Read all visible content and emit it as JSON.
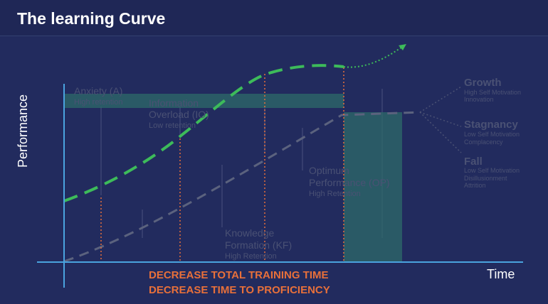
{
  "header": {
    "title": "The learning Curve"
  },
  "axes": {
    "y_label": "Performance",
    "x_label": "Time"
  },
  "stages": [
    {
      "lines": [
        "Anxiety (A)"
      ],
      "note": "High retention"
    },
    {
      "lines": [
        "Information",
        "Overload (IO)"
      ],
      "note": "Low retention"
    },
    {
      "lines": [
        "Knowledge",
        "Formation (KF)"
      ],
      "note": "High Retention"
    },
    {
      "lines": [
        "Optimum",
        "Performance (OP)"
      ],
      "note": "High Retention"
    }
  ],
  "outcomes": [
    {
      "title": "Growth",
      "notes": [
        "High Self Motivation",
        "Innovation"
      ]
    },
    {
      "title": "Stagnancy",
      "notes": [
        "Low Self Motivation",
        "Complacency"
      ]
    },
    {
      "title": "Fall",
      "notes": [
        "Low Self Motivation",
        "Disillusionment",
        "Attrition"
      ]
    }
  ],
  "footer": {
    "lines": [
      "DECREASE TOTAL TRAINING TIME",
      "DECREASE TIME TO PROFICIENCY"
    ]
  }
}
